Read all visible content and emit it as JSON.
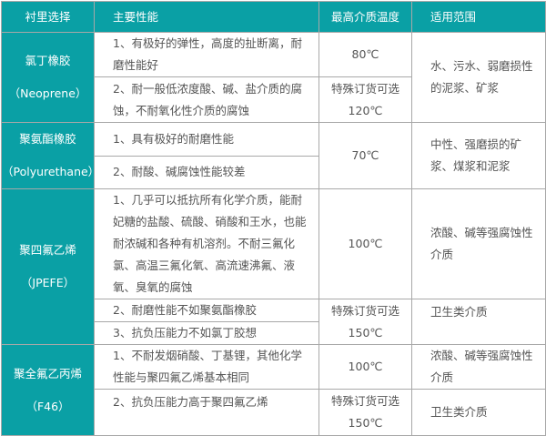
{
  "header": [
    "衬里选择",
    "主要性能",
    "最高介质温度",
    "适用范围"
  ],
  "colors": {
    "accent": "#0aa0a5",
    "border": "#a8a8a8",
    "text": "#555555"
  },
  "rows": [
    {
      "material": "氯丁橡胶",
      "material_en": "（Neoprene）",
      "props": [
        "1、有极好的弹性，高度的扯断离，耐磨性能好",
        "2、耐一般低浓度酸、碱、盐介质的腐蚀，不耐氧化性介质的腐蚀"
      ],
      "temps": [
        "80℃",
        "特殊订货可选",
        "120℃"
      ],
      "uses": [
        "水、污水、弱磨损性的泥浆、矿浆"
      ]
    },
    {
      "material": "聚氨酯橡胶",
      "material_en": "（Polyurethane）",
      "props": [
        "1、具有极好的耐磨性能",
        "2、耐酸、碱腐蚀性能较差"
      ],
      "temps": [
        "70℃"
      ],
      "uses": [
        "中性、强磨损的矿浆、煤浆和泥浆"
      ]
    },
    {
      "material": "聚四氟乙烯",
      "material_en": "（JPEFE）",
      "props": [
        "1、几乎可以抵抗所有化学介质，能耐妃糖的盐酸、硫酸、硝酸和王水，也能耐浓碱和各种有机溶剂。不耐三氟化氯、高温三氟化氧、高流速沸氟、液氧、臭氧的腐蚀",
        "2、耐磨性能不如聚氨酯橡胶",
        "3、抗负压能力不如氯丁胶想"
      ],
      "temps": [
        "100℃",
        "特殊订货可选",
        "150℃"
      ],
      "uses": [
        "浓酸、碱等强腐蚀性介质",
        "卫生类介质"
      ]
    },
    {
      "material": "聚全氟乙丙烯",
      "material_en": "（F46）",
      "props": [
        "1、不耐发烟硝酸、丁基锂，其他化学性能与聚四氟乙烯基本相同",
        "2、抗负压能力高于聚四氟乙烯"
      ],
      "temps": [
        "100℃",
        "特殊订货可选",
        "150℃"
      ],
      "uses": [
        "浓酸、碱等强腐蚀性介质",
        "卫生类介质"
      ]
    }
  ]
}
